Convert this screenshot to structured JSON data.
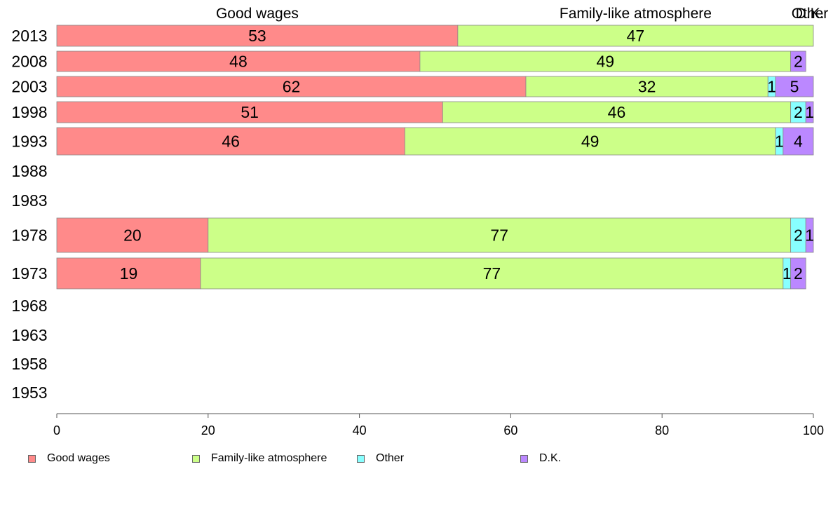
{
  "chart_data": {
    "type": "bar",
    "orientation": "horizontal",
    "stacked": true,
    "categories": [
      "2013",
      "2008",
      "2003",
      "1998",
      "1993",
      "1988",
      "1983",
      "1978",
      "1973",
      "1968",
      "1963",
      "1958",
      "1953"
    ],
    "series": [
      {
        "name": "Good wages",
        "color": "#ff8a8a",
        "values": [
          53,
          48,
          62,
          51,
          46,
          null,
          null,
          20,
          19,
          null,
          null,
          null,
          null
        ]
      },
      {
        "name": "Family-like atmosphere",
        "color": "#ccff88",
        "values": [
          47,
          49,
          32,
          46,
          49,
          null,
          null,
          77,
          77,
          null,
          null,
          null,
          null
        ]
      },
      {
        "name": "Other",
        "color": "#88ffff",
        "values": [
          0,
          0,
          1,
          2,
          1,
          null,
          null,
          2,
          1,
          null,
          null,
          null,
          null
        ]
      },
      {
        "name": "D.K.",
        "color": "#bb88ff",
        "values": [
          0,
          2,
          5,
          1,
          4,
          null,
          null,
          1,
          2,
          null,
          null,
          null,
          null
        ]
      }
    ],
    "top_labels": [
      "Good wages",
      "Family-like atmosphere",
      "Other",
      "D.K."
    ],
    "x_ticks": [
      "0",
      "20",
      "40",
      "60",
      "80",
      "100"
    ],
    "xlim": [
      0,
      100
    ],
    "legend_position": "bottom",
    "grid": false
  },
  "legend": {
    "items": [
      {
        "label": "Good wages",
        "color": "#ff8a8a"
      },
      {
        "label": "Family-like atmosphere",
        "color": "#ccff88"
      },
      {
        "label": "Other",
        "color": "#88ffff"
      },
      {
        "label": "D.K.",
        "color": "#bb88ff"
      }
    ]
  }
}
